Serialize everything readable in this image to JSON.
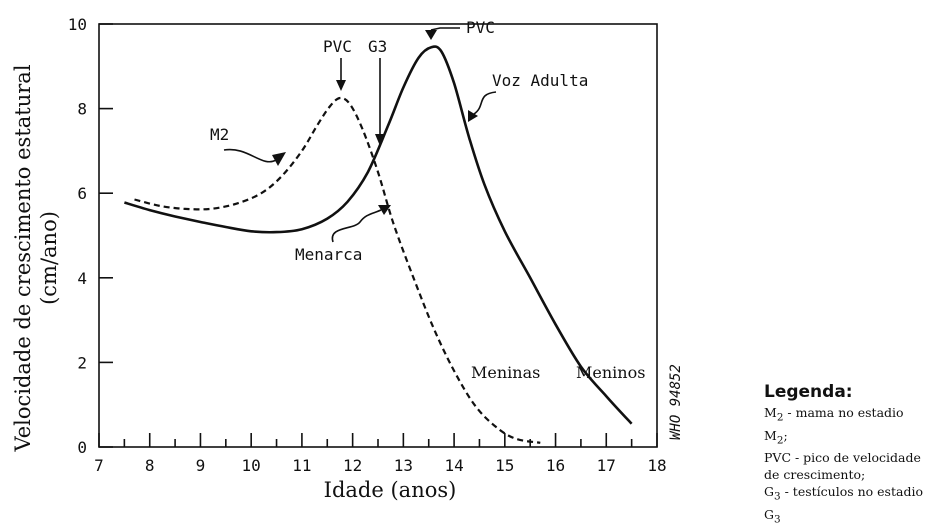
{
  "chart_data": {
    "type": "line",
    "title": "",
    "xlabel": "Idade (anos)",
    "ylabel_line1": "Velocidade de crescimento estatural",
    "ylabel_line2": "(cm/ano)",
    "xlim": [
      7,
      18
    ],
    "ylim": [
      0,
      10
    ],
    "x_ticks": [
      7,
      8,
      9,
      10,
      11,
      12,
      13,
      14,
      15,
      16,
      17,
      18
    ],
    "y_ticks": [
      0,
      2,
      4,
      6,
      8,
      10
    ],
    "series": [
      {
        "name": "Meninas",
        "style": "dashed",
        "points": [
          [
            7.7,
            5.85
          ],
          [
            8.2,
            5.7
          ],
          [
            8.7,
            5.63
          ],
          [
            9.2,
            5.63
          ],
          [
            9.7,
            5.75
          ],
          [
            10.2,
            6.0
          ],
          [
            10.6,
            6.4
          ],
          [
            11.0,
            7.0
          ],
          [
            11.3,
            7.6
          ],
          [
            11.55,
            8.05
          ],
          [
            11.75,
            8.25
          ],
          [
            11.95,
            8.1
          ],
          [
            12.2,
            7.5
          ],
          [
            12.5,
            6.5
          ],
          [
            12.8,
            5.3
          ],
          [
            13.2,
            4.0
          ],
          [
            13.6,
            2.8
          ],
          [
            14.0,
            1.8
          ],
          [
            14.4,
            1.0
          ],
          [
            14.8,
            0.5
          ],
          [
            15.2,
            0.2
          ],
          [
            15.7,
            0.1
          ]
        ]
      },
      {
        "name": "Meninos",
        "style": "solid",
        "points": [
          [
            7.5,
            5.78
          ],
          [
            8.0,
            5.6
          ],
          [
            8.5,
            5.45
          ],
          [
            9.0,
            5.32
          ],
          [
            9.5,
            5.2
          ],
          [
            10.0,
            5.1
          ],
          [
            10.5,
            5.08
          ],
          [
            11.0,
            5.15
          ],
          [
            11.5,
            5.4
          ],
          [
            11.9,
            5.8
          ],
          [
            12.3,
            6.5
          ],
          [
            12.7,
            7.6
          ],
          [
            13.0,
            8.5
          ],
          [
            13.3,
            9.2
          ],
          [
            13.55,
            9.45
          ],
          [
            13.75,
            9.35
          ],
          [
            14.0,
            8.6
          ],
          [
            14.3,
            7.3
          ],
          [
            14.6,
            6.2
          ],
          [
            15.0,
            5.1
          ],
          [
            15.5,
            4.0
          ],
          [
            16.0,
            2.9
          ],
          [
            16.5,
            1.9
          ],
          [
            17.0,
            1.2
          ],
          [
            17.5,
            0.55
          ]
        ]
      }
    ],
    "annotations": {
      "m2": "M2",
      "pvc_girls": "PVC",
      "g3": "G3",
      "pvc_boys": "PVC",
      "voz_adulta": "Voz Adulta",
      "menarca": "Menarca",
      "meninas": "Meninas",
      "meninos": "Meninos"
    },
    "side_code": "WHO 94852"
  },
  "legend": {
    "title": "Legenda:",
    "m2_prefix": "M",
    "m2_sub": "2",
    "m2_text": " - mama no estadio M",
    "m2_sub2": "2",
    "m2_end": ";",
    "pvc_line": "PVC - pico de velocidade de crescimento;",
    "g3_prefix": "G",
    "g3_sub": "3",
    "g3_text": " - testículos no estadio G",
    "g3_sub2": "3"
  }
}
